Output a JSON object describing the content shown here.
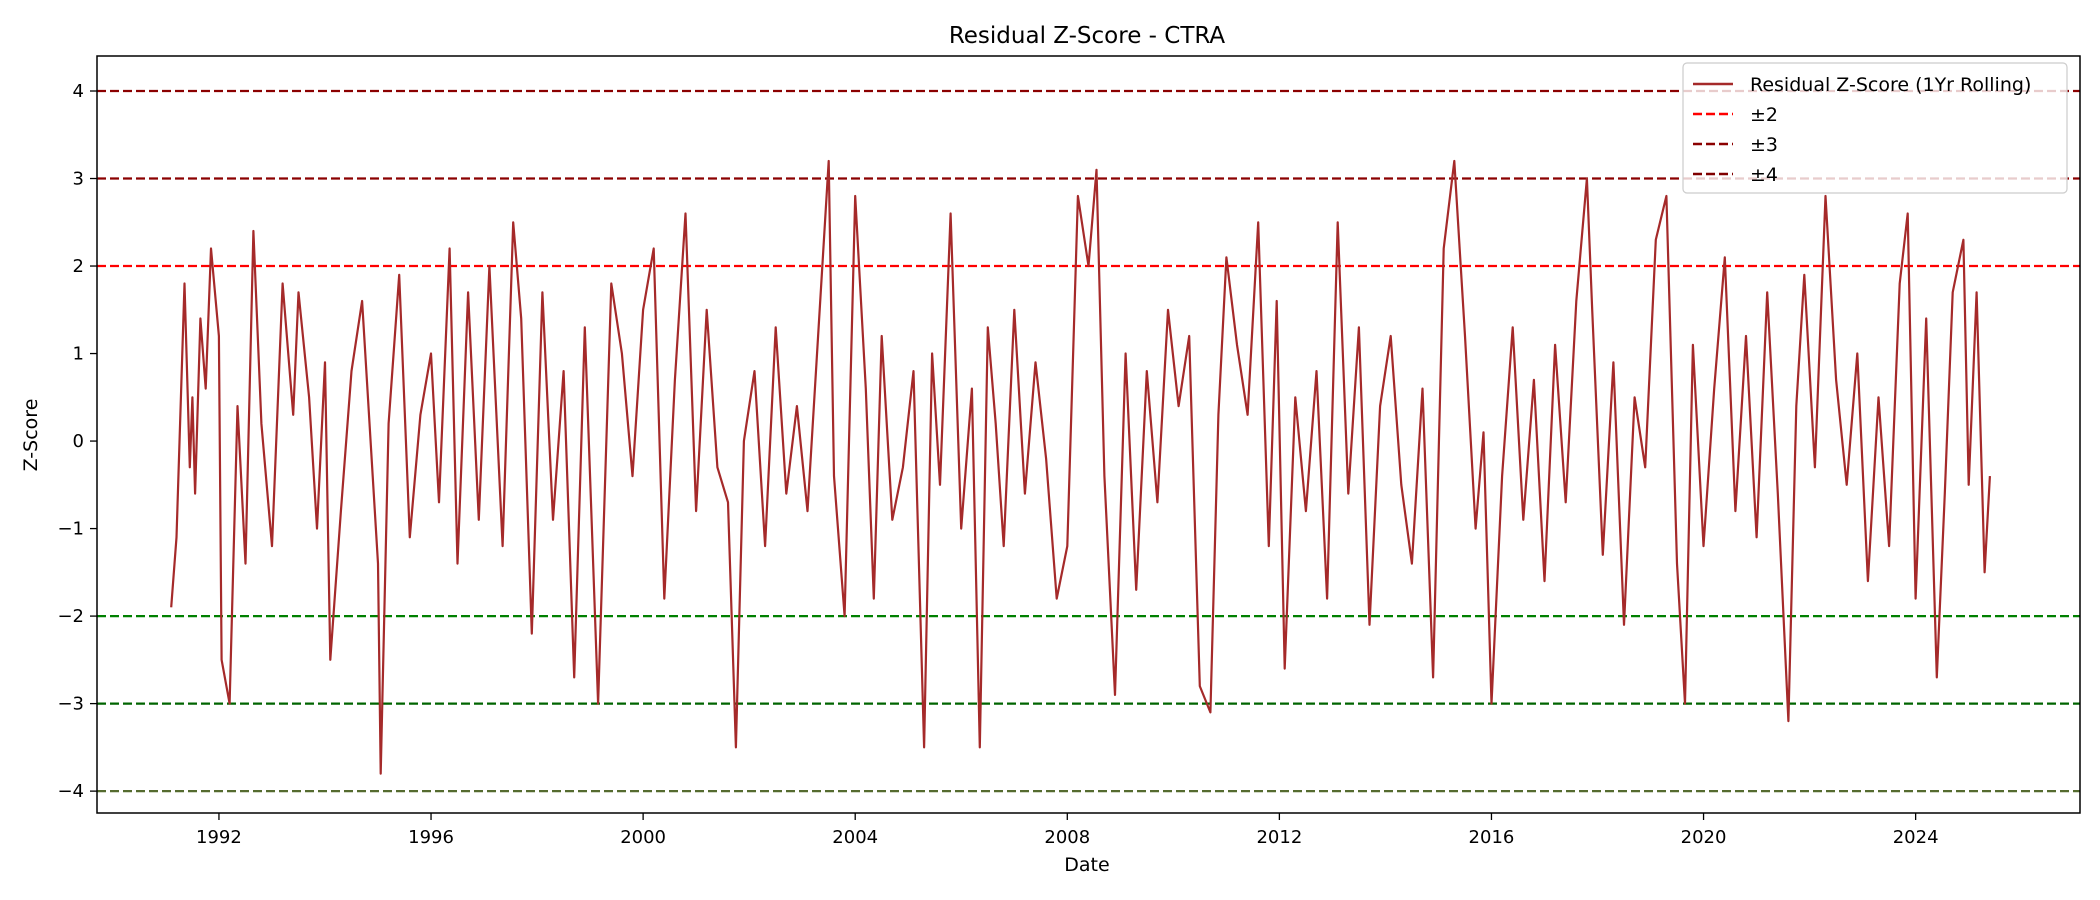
{
  "chart_data": {
    "type": "line",
    "title": "Residual Z-Score - CTRA",
    "xlabel": "Date",
    "ylabel": "Z-Score",
    "xlim": [
      1989.7,
      2027.1
    ],
    "ylim": [
      -4.25,
      4.4
    ],
    "x_ticks": [
      1992,
      1996,
      2000,
      2004,
      2008,
      2012,
      2016,
      2020,
      2024
    ],
    "x_tick_labels": [
      "1992",
      "1996",
      "2000",
      "2004",
      "2008",
      "2012",
      "2016",
      "2020",
      "2024"
    ],
    "y_ticks": [
      4,
      3,
      2,
      1,
      0,
      -1,
      -2,
      -3,
      -4
    ],
    "y_tick_labels": [
      "4",
      "3",
      "2",
      "1",
      "0",
      "−1",
      "−2",
      "−3",
      "−4"
    ],
    "grid": false,
    "legend_position": "top-right",
    "series": [
      {
        "name": "Residual Z-Score (1Yr Rolling)",
        "color": "#a52a2a",
        "x": [
          1991.1,
          1991.2,
          1991.35,
          1991.45,
          1991.5,
          1991.55,
          1991.65,
          1991.75,
          1991.85,
          1992.0,
          1992.05,
          1992.2,
          1992.35,
          1992.5,
          1992.65,
          1992.8,
          1993.0,
          1993.2,
          1993.4,
          1993.5,
          1993.7,
          1993.85,
          1994.0,
          1994.1,
          1994.3,
          1994.5,
          1994.7,
          1994.9,
          1995.0,
          1995.05,
          1995.2,
          1995.4,
          1995.6,
          1995.8,
          1996.0,
          1996.15,
          1996.35,
          1996.5,
          1996.7,
          1996.9,
          1997.1,
          1997.35,
          1997.55,
          1997.7,
          1997.9,
          1998.1,
          1998.3,
          1998.5,
          1998.7,
          1998.9,
          1999.15,
          1999.4,
          1999.6,
          1999.8,
          2000.0,
          2000.2,
          2000.4,
          2000.6,
          2000.8,
          2001.0,
          2001.2,
          2001.4,
          2001.6,
          2001.75,
          2001.9,
          2002.1,
          2002.3,
          2002.5,
          2002.7,
          2002.9,
          2003.1,
          2003.3,
          2003.5,
          2003.6,
          2003.8,
          2004.0,
          2004.2,
          2004.35,
          2004.5,
          2004.7,
          2004.9,
          2005.1,
          2005.3,
          2005.45,
          2005.6,
          2005.8,
          2006.0,
          2006.2,
          2006.35,
          2006.5,
          2006.65,
          2006.8,
          2007.0,
          2007.2,
          2007.4,
          2007.6,
          2007.8,
          2008.0,
          2008.2,
          2008.4,
          2008.55,
          2008.7,
          2008.9,
          2009.1,
          2009.3,
          2009.5,
          2009.7,
          2009.9,
          2010.1,
          2010.3,
          2010.5,
          2010.7,
          2010.85,
          2011.0,
          2011.2,
          2011.4,
          2011.6,
          2011.8,
          2011.95,
          2012.1,
          2012.3,
          2012.5,
          2012.7,
          2012.9,
          2013.1,
          2013.3,
          2013.5,
          2013.7,
          2013.9,
          2014.1,
          2014.3,
          2014.5,
          2014.7,
          2014.9,
          2015.1,
          2015.3,
          2015.5,
          2015.7,
          2015.85,
          2016.0,
          2016.2,
          2016.4,
          2016.6,
          2016.8,
          2017.0,
          2017.2,
          2017.4,
          2017.6,
          2017.8,
          2017.9,
          2018.1,
          2018.3,
          2018.5,
          2018.7,
          2018.9,
          2019.1,
          2019.3,
          2019.5,
          2019.65,
          2019.8,
          2020.0,
          2020.2,
          2020.4,
          2020.6,
          2020.8,
          2021.0,
          2021.2,
          2021.4,
          2021.6,
          2021.75,
          2021.9,
          2022.1,
          2022.3,
          2022.5,
          2022.7,
          2022.9,
          2023.1,
          2023.3,
          2023.5,
          2023.7,
          2023.85,
          2024.0,
          2024.2,
          2024.4,
          2024.55,
          2024.7,
          2024.9,
          2025.0,
          2025.15,
          2025.3,
          2025.4
        ],
        "y": [
          -1.9,
          -1.1,
          1.8,
          -0.3,
          0.5,
          -0.6,
          1.4,
          0.6,
          2.2,
          1.2,
          -2.5,
          -3.0,
          0.4,
          -1.4,
          2.4,
          0.2,
          -1.2,
          1.8,
          0.3,
          1.7,
          0.5,
          -1.0,
          0.9,
          -2.5,
          -0.8,
          0.8,
          1.6,
          -0.4,
          -1.4,
          -3.8,
          0.2,
          1.9,
          -1.1,
          0.3,
          1.0,
          -0.7,
          2.2,
          -1.4,
          1.7,
          -0.9,
          2.0,
          -1.2,
          2.5,
          1.4,
          -2.2,
          1.7,
          -0.9,
          0.8,
          -2.7,
          1.3,
          -3.0,
          1.8,
          1.0,
          -0.4,
          1.5,
          2.2,
          -1.8,
          0.7,
          2.6,
          -0.8,
          1.5,
          -0.3,
          -0.7,
          -3.5,
          0.0,
          0.8,
          -1.2,
          1.3,
          -0.6,
          0.4,
          -0.8,
          1.2,
          3.2,
          -0.4,
          -2.0,
          2.8,
          0.6,
          -1.8,
          1.2,
          -0.9,
          -0.3,
          0.8,
          -3.5,
          1.0,
          -0.5,
          2.6,
          -1.0,
          0.6,
          -3.5,
          1.3,
          0.2,
          -1.2,
          1.5,
          -0.6,
          0.9,
          -0.2,
          -1.8,
          -1.2,
          2.8,
          2.0,
          3.1,
          -0.4,
          -2.9,
          1.0,
          -1.7,
          0.8,
          -0.7,
          1.5,
          0.4,
          1.2,
          -2.8,
          -3.1,
          0.3,
          2.1,
          1.1,
          0.3,
          2.5,
          -1.2,
          1.6,
          -2.6,
          0.5,
          -0.8,
          0.8,
          -1.8,
          2.5,
          -0.6,
          1.3,
          -2.1,
          0.4,
          1.2,
          -0.5,
          -1.4,
          0.6,
          -2.7,
          2.2,
          3.2,
          1.2,
          -1.0,
          0.1,
          -3.0,
          -0.4,
          1.3,
          -0.9,
          0.7,
          -1.6,
          1.1,
          -0.7,
          1.6,
          3.0,
          1.5,
          -1.3,
          0.9,
          -2.1,
          0.5,
          -0.3,
          2.3,
          2.8,
          -1.4,
          -3.0,
          1.1,
          -1.2,
          0.6,
          2.1,
          -0.8,
          1.2,
          -1.1,
          1.7,
          -0.6,
          -3.2,
          0.4,
          1.9,
          -0.3,
          2.8,
          0.7,
          -0.5,
          1.0,
          -1.6,
          0.5,
          -1.2,
          1.8,
          2.6,
          -1.8,
          1.4,
          -2.7,
          -0.6,
          1.7,
          2.3,
          -0.5,
          1.7,
          -1.5,
          -0.4
        ]
      },
      {
        "name": "±2",
        "color": "#ff0000",
        "style": "dashed",
        "value": 2
      },
      {
        "name": "±3",
        "color": "#8b0000",
        "style": "dashed",
        "value": 3
      },
      {
        "name": "±4",
        "color": "#800000",
        "style": "dashed",
        "value": 4
      }
    ],
    "reference_lines": [
      {
        "y": 4,
        "color": "#8b0000"
      },
      {
        "y": 3,
        "color": "#8b0000"
      },
      {
        "y": 2,
        "color": "#ff0000"
      },
      {
        "y": -2,
        "color": "#008000"
      },
      {
        "y": -3,
        "color": "#006400"
      },
      {
        "y": -4,
        "color": "#556b2f"
      }
    ]
  }
}
